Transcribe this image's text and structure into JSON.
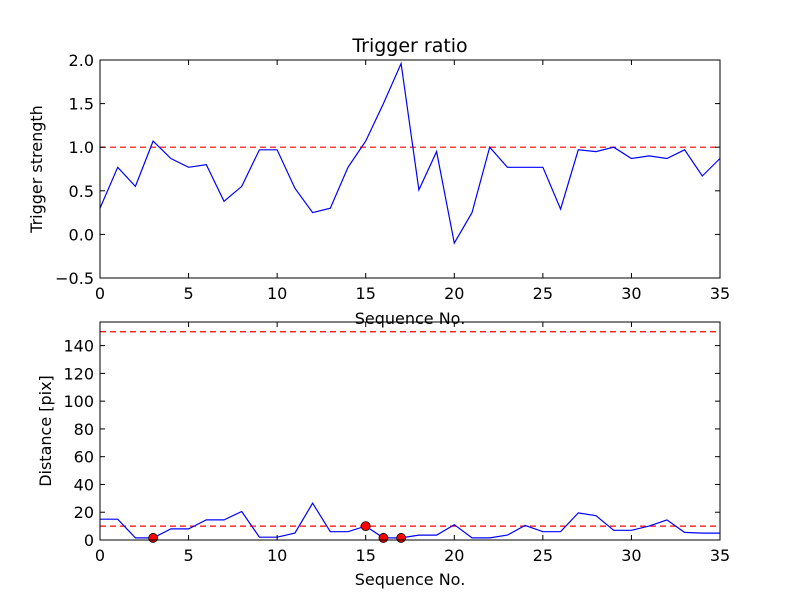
{
  "chart_data": [
    {
      "type": "line",
      "title": "Trigger ratio",
      "xlabel": "Sequence No.",
      "ylabel": "Trigger strength",
      "xlim": [
        0,
        35
      ],
      "ylim": [
        -0.5,
        2.0
      ],
      "xticks": [
        "0",
        "5",
        "10",
        "15",
        "20",
        "25",
        "30",
        "35"
      ],
      "yticks": [
        "−0.5",
        "0.0",
        "0.5",
        "1.0",
        "1.5",
        "2.0"
      ],
      "grid": false,
      "series": [
        {
          "color": "#0000ff",
          "x": [
            0,
            1,
            2,
            3,
            4,
            5,
            6,
            7,
            8,
            9,
            10,
            11,
            12,
            13,
            14,
            15,
            16,
            17,
            18,
            19,
            20,
            21,
            22,
            23,
            24,
            25,
            26,
            27,
            28,
            29,
            30,
            31,
            32,
            33,
            34,
            35
          ],
          "y": [
            0.3,
            0.77,
            0.55,
            1.07,
            0.87,
            0.77,
            0.8,
            0.38,
            0.55,
            0.97,
            0.97,
            0.53,
            0.25,
            0.3,
            0.77,
            1.07,
            1.5,
            1.96,
            0.51,
            0.95,
            -0.1,
            0.25,
            1.0,
            0.77,
            0.77,
            0.77,
            0.29,
            0.97,
            0.95,
            1.0,
            0.87,
            0.9,
            0.87,
            0.97,
            0.67,
            0.87
          ]
        }
      ],
      "reference_lines": [
        {
          "y": 1.0,
          "color": "#ff0000",
          "style": "dashed"
        }
      ]
    },
    {
      "type": "line",
      "title": "",
      "xlabel": "Sequence No.",
      "ylabel": "Distance [pix]",
      "xlim": [
        0,
        35
      ],
      "ylim": [
        0,
        157
      ],
      "xticks": [
        "0",
        "5",
        "10",
        "15",
        "20",
        "25",
        "30",
        "35"
      ],
      "yticks": [
        "0",
        "20",
        "40",
        "60",
        "80",
        "100",
        "120",
        "140"
      ],
      "grid": false,
      "series": [
        {
          "color": "#0000ff",
          "x": [
            0,
            1,
            2,
            3,
            4,
            5,
            6,
            7,
            8,
            9,
            10,
            11,
            12,
            13,
            14,
            15,
            16,
            17,
            18,
            19,
            20,
            21,
            22,
            23,
            24,
            25,
            26,
            27,
            28,
            29,
            30,
            31,
            32,
            33,
            34,
            35
          ],
          "y": [
            15,
            15,
            1.5,
            1.5,
            8,
            8,
            14.5,
            14.5,
            20.5,
            2,
            2,
            5,
            26.5,
            6,
            6,
            10,
            1.5,
            1.5,
            3.5,
            3.5,
            11,
            1.5,
            1.5,
            3.5,
            10.5,
            6,
            6,
            19.5,
            17.5,
            7,
            7,
            10,
            14.5,
            5.5,
            5,
            5
          ]
        }
      ],
      "reference_lines": [
        {
          "y": 150,
          "color": "#ff0000",
          "style": "dashed"
        },
        {
          "y": 10,
          "color": "#ff0000",
          "style": "dashed"
        }
      ],
      "markers": {
        "color": "#ff0000",
        "points": [
          {
            "x": 3,
            "y": 1.5
          },
          {
            "x": 15,
            "y": 10
          },
          {
            "x": 16,
            "y": 1.5
          },
          {
            "x": 17,
            "y": 1.5
          }
        ]
      }
    }
  ]
}
